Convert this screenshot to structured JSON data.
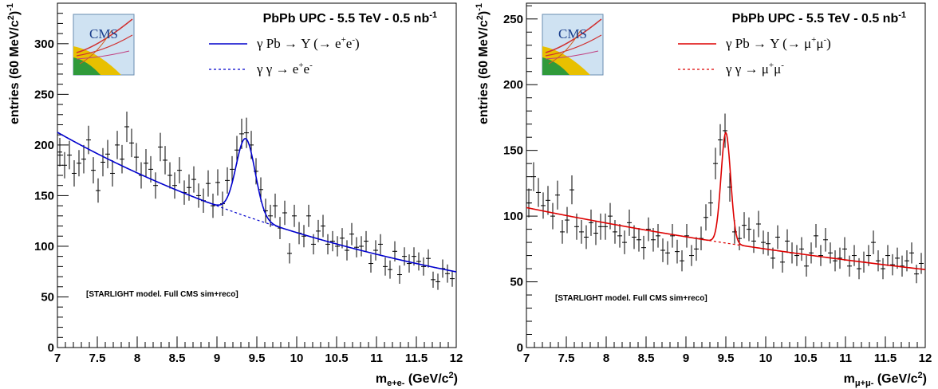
{
  "chart_data": [
    {
      "type": "scatter",
      "title": "PbPb UPC - 5.5 TeV - 0.5 nb",
      "title_sup": "-1",
      "note": "[STARLIGHT model. Full CMS sim+reco]",
      "xlabel": {
        "main": "m",
        "sub": "e+e-",
        "unit": " (GeV/c",
        "unit_sup": "2",
        "unit_end": ")"
      },
      "ylabel": {
        "main": "entries (60 MeV/c",
        "sup1": "2",
        "mid": ")",
        "sup2": "-1"
      },
      "xlim": [
        7,
        12
      ],
      "ylim": [
        0,
        340
      ],
      "x_ticks": [
        7,
        7.5,
        8,
        8.5,
        9,
        9.5,
        10,
        10.5,
        11,
        11.5,
        12
      ],
      "x_tick_labels": [
        "7",
        "7.5",
        "8",
        "8.5",
        "9",
        "9.5",
        "10",
        "10.5",
        "11",
        "11.5",
        "12"
      ],
      "y_ticks": [
        0,
        50,
        100,
        150,
        200,
        250,
        300
      ],
      "y_tick_labels": [
        "0",
        "50",
        "100",
        "150",
        "200",
        "250",
        "300"
      ],
      "line_color": "#0000cc",
      "legend": [
        {
          "style": "solid",
          "text": "γ Pb → Υ (→ e",
          "sup1": "+",
          "mid": "e",
          "sup2": "-",
          "end": ")"
        },
        {
          "style": "dashed",
          "text": "γ γ → e",
          "sup1": "+",
          "mid": "e",
          "sup2": "-",
          "end": ""
        }
      ],
      "background_model": {
        "a": 212.5,
        "b": 0.209
      },
      "peak_model": {
        "mass": 9.36,
        "sigma": 0.12,
        "amplitude": 76.5
      },
      "points": {
        "x": [
          7.03,
          7.09,
          7.15,
          7.21,
          7.27,
          7.33,
          7.39,
          7.45,
          7.51,
          7.57,
          7.63,
          7.69,
          7.75,
          7.81,
          7.87,
          7.93,
          7.99,
          8.05,
          8.11,
          8.17,
          8.23,
          8.29,
          8.35,
          8.41,
          8.47,
          8.53,
          8.59,
          8.65,
          8.71,
          8.77,
          8.83,
          8.89,
          8.95,
          9.01,
          9.07,
          9.13,
          9.19,
          9.25,
          9.31,
          9.37,
          9.43,
          9.49,
          9.55,
          9.61,
          9.67,
          9.73,
          9.79,
          9.85,
          9.91,
          9.97,
          10.03,
          10.09,
          10.15,
          10.21,
          10.27,
          10.33,
          10.39,
          10.45,
          10.51,
          10.57,
          10.63,
          10.69,
          10.75,
          10.81,
          10.87,
          10.93,
          10.99,
          11.05,
          11.11,
          11.17,
          11.23,
          11.29,
          11.35,
          11.41,
          11.47,
          11.53,
          11.59,
          11.65,
          11.71,
          11.77,
          11.83,
          11.89,
          11.95
        ],
        "y": [
          193,
          180,
          190,
          172,
          182,
          186,
          205,
          175,
          155,
          183,
          191,
          172,
          200,
          186,
          218,
          202,
          188,
          170,
          182,
          176,
          160,
          198,
          185,
          170,
          160,
          175,
          153,
          158,
          166,
          150,
          145,
          162,
          140,
          163,
          142,
          165,
          176,
          195,
          211,
          212,
          200,
          174,
          156,
          135,
          130,
          140,
          118,
          133,
          93,
          130,
          113,
          110,
          130,
          102,
          115,
          120,
          102,
          105,
          100,
          108,
          96,
          112,
          99,
          100,
          105,
          83,
          96,
          102,
          80,
          77,
          95,
          72,
          90,
          83,
          90,
          85,
          80,
          88,
          67,
          65,
          78,
          73,
          68
        ],
        "yerr": [
          14,
          13,
          14,
          13,
          13,
          14,
          14,
          13,
          12,
          14,
          14,
          13,
          14,
          14,
          15,
          14,
          14,
          13,
          14,
          13,
          13,
          14,
          14,
          13,
          13,
          13,
          12,
          13,
          13,
          12,
          12,
          13,
          12,
          13,
          12,
          13,
          13,
          14,
          15,
          15,
          14,
          13,
          12,
          12,
          11,
          12,
          11,
          12,
          10,
          11,
          11,
          11,
          11,
          10,
          11,
          11,
          10,
          10,
          10,
          10,
          10,
          11,
          10,
          10,
          10,
          9,
          10,
          10,
          9,
          9,
          10,
          9,
          9,
          9,
          9,
          9,
          9,
          9,
          8,
          8,
          9,
          9,
          8
        ]
      }
    },
    {
      "type": "scatter",
      "title": "PbPb UPC - 5.5 TeV - 0.5 nb",
      "title_sup": "-1",
      "note": "[STARLIGHT model. Full CMS sim+reco]",
      "xlabel": {
        "main": "m",
        "sub": "μ+μ-",
        "unit": " (GeV/c",
        "unit_sup": "2",
        "unit_end": ")"
      },
      "ylabel": {
        "main": "entries (60 MeV/c",
        "sup1": "2",
        "mid": ")",
        "sup2": "-1"
      },
      "xlim": [
        7,
        12
      ],
      "ylim": [
        0,
        262
      ],
      "x_ticks": [
        7,
        7.5,
        8,
        8.5,
        9,
        9.5,
        10,
        10.5,
        11,
        11.5,
        12
      ],
      "x_tick_labels": [
        "7",
        "7.5",
        "8",
        "8.5",
        "9",
        "9.5",
        "10",
        "10.5",
        "11",
        "11.5",
        "12"
      ],
      "y_ticks": [
        0,
        50,
        100,
        150,
        200,
        250
      ],
      "y_tick_labels": [
        "0",
        "50",
        "100",
        "150",
        "200",
        "250"
      ],
      "line_color": "#dd0000",
      "legend": [
        {
          "style": "solid",
          "text": "γ Pb → Υ (→ μ",
          "sup1": "+",
          "mid": "μ",
          "sup2": "-",
          "end": ")"
        },
        {
          "style": "dashed",
          "text": "γ γ → μ",
          "sup1": "+",
          "mid": "μ",
          "sup2": "-",
          "end": ""
        }
      ],
      "background_model": {
        "a": 106.5,
        "b": 0.117
      },
      "peak_model": {
        "mass": 9.5,
        "sigma": 0.06,
        "amplitude": 84
      },
      "points": {
        "x": [
          7.03,
          7.09,
          7.15,
          7.21,
          7.27,
          7.33,
          7.39,
          7.45,
          7.51,
          7.57,
          7.63,
          7.69,
          7.75,
          7.81,
          7.87,
          7.93,
          7.99,
          8.05,
          8.11,
          8.17,
          8.23,
          8.29,
          8.35,
          8.41,
          8.47,
          8.53,
          8.59,
          8.65,
          8.71,
          8.77,
          8.83,
          8.89,
          8.95,
          9.01,
          9.07,
          9.13,
          9.19,
          9.25,
          9.31,
          9.37,
          9.43,
          9.49,
          9.55,
          9.61,
          9.67,
          9.73,
          9.79,
          9.85,
          9.91,
          9.97,
          10.03,
          10.09,
          10.15,
          10.21,
          10.27,
          10.33,
          10.39,
          10.45,
          10.51,
          10.57,
          10.63,
          10.69,
          10.75,
          10.81,
          10.87,
          10.93,
          10.99,
          11.05,
          11.11,
          11.17,
          11.23,
          11.29,
          11.35,
          11.41,
          11.47,
          11.53,
          11.59,
          11.65,
          11.71,
          11.77,
          11.83,
          11.89,
          11.95
        ],
        "y": [
          110,
          130,
          118,
          108,
          112,
          100,
          116,
          88,
          97,
          120,
          92,
          88,
          84,
          95,
          87,
          92,
          92,
          100,
          88,
          85,
          80,
          95,
          84,
          82,
          76,
          90,
          82,
          85,
          74,
          72,
          85,
          73,
          66,
          85,
          70,
          75,
          83,
          99,
          110,
          140,
          158,
          165,
          122,
          88,
          83,
          93,
          90,
          81,
          94,
          80,
          79,
          68,
          84,
          65,
          81,
          72,
          70,
          75,
          62,
          72,
          85,
          70,
          82,
          72,
          66,
          68,
          75,
          62,
          70,
          60,
          65,
          70,
          80,
          66,
          60,
          70,
          63,
          68,
          62,
          66,
          72,
          56,
          64
        ],
        "yerr": [
          11,
          11,
          11,
          10,
          11,
          10,
          11,
          9,
          10,
          11,
          10,
          9,
          9,
          10,
          9,
          10,
          10,
          10,
          9,
          9,
          9,
          10,
          9,
          9,
          9,
          9,
          9,
          9,
          9,
          9,
          9,
          9,
          8,
          9,
          8,
          9,
          9,
          10,
          10,
          12,
          12,
          13,
          11,
          9,
          9,
          10,
          9,
          9,
          10,
          9,
          9,
          8,
          9,
          8,
          9,
          8,
          8,
          9,
          8,
          8,
          9,
          8,
          9,
          8,
          8,
          8,
          9,
          8,
          8,
          8,
          8,
          8,
          9,
          8,
          8,
          8,
          8,
          8,
          8,
          8,
          8,
          7,
          8
        ]
      }
    }
  ]
}
